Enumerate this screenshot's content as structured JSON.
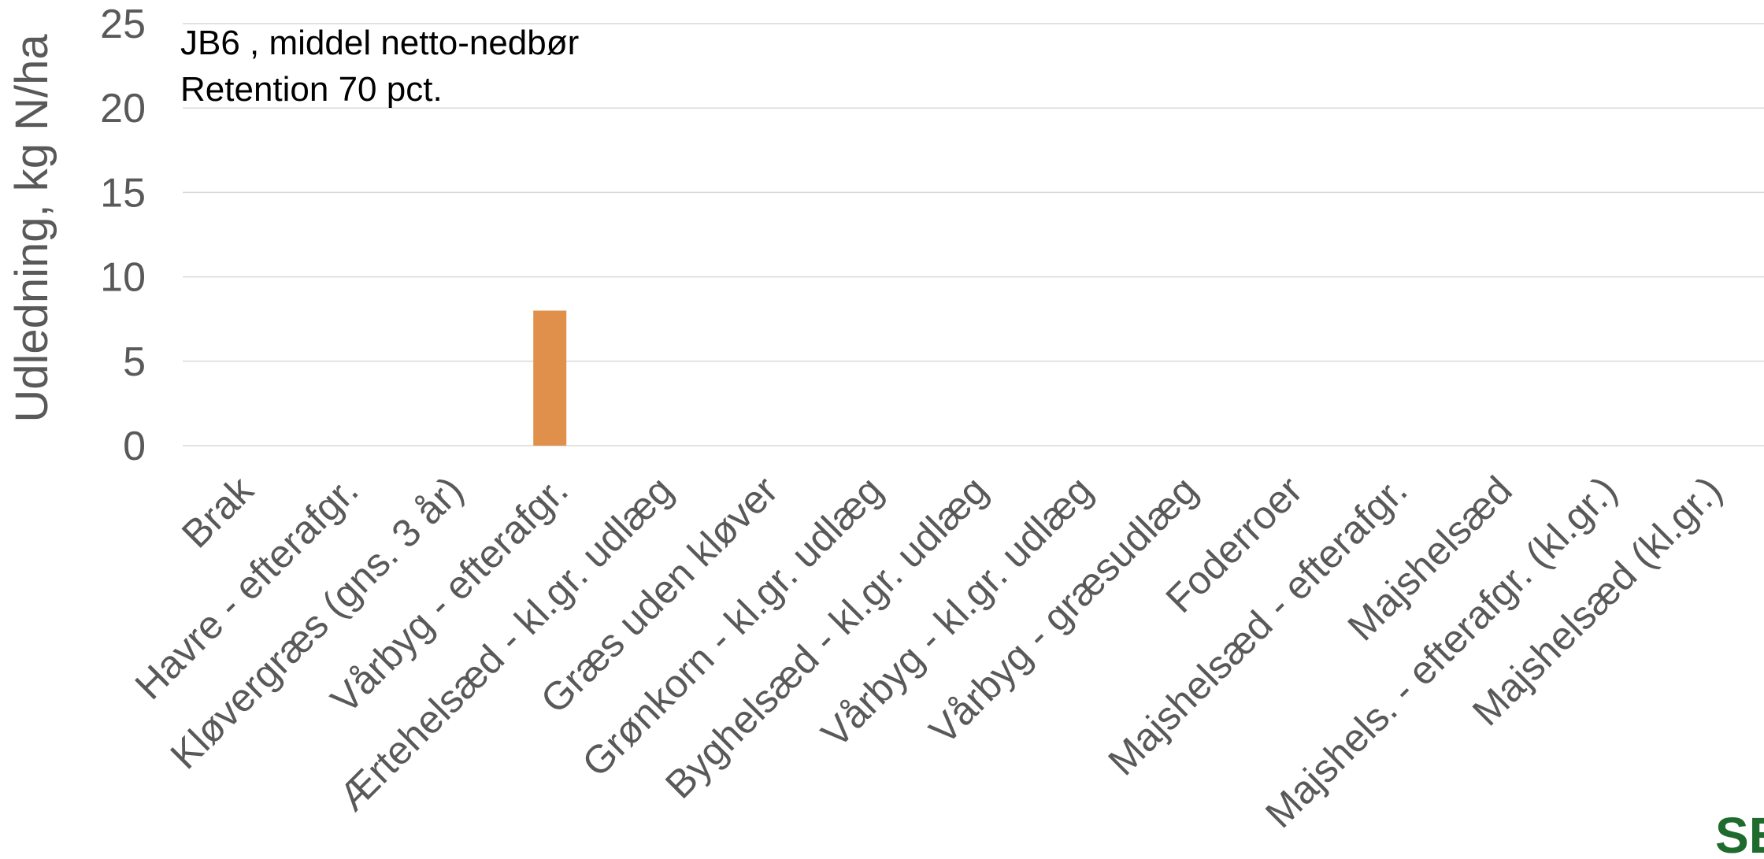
{
  "chart_data": {
    "type": "bar",
    "title": "",
    "xlabel": "",
    "ylabel": "Udledning, kg N/ha",
    "ylim": [
      0,
      25
    ],
    "yticks": [
      0,
      5,
      10,
      15,
      20,
      25
    ],
    "grid": true,
    "annotation": [
      "JB6 , middel netto-nedbør",
      "Retention 70 pct."
    ],
    "categories": [
      "Brak",
      "Havre - efterafgr.",
      "Kløvergræs (gns. 3 år)",
      "Vårbyg - efterafgr.",
      "Ærtehelsæd - kl.gr. udlæg",
      "Græs uden kløver",
      "Grønkorn - kl.gr. udlæg",
      "Byghelsæd - kl.gr. udlæg",
      "Vårbyg - kl.gr. udlæg",
      "Vårbyg - græsudlæg",
      "Foderroer",
      "Majshelsæd - efterafgr.",
      "Majshelsæd",
      "Majshels. - efterafgr. (kl.gr.)",
      "Majshelsæd (kl.gr.)"
    ],
    "values": [
      0,
      0,
      0,
      8,
      0,
      0,
      0,
      0,
      0,
      0,
      0,
      0,
      0,
      0,
      0
    ],
    "bar_color": "#E0904A",
    "grid_color": "#D9D9D9",
    "text_color": "#595959"
  },
  "logo": {
    "text": "SE",
    "color": "#1F6B2E"
  }
}
